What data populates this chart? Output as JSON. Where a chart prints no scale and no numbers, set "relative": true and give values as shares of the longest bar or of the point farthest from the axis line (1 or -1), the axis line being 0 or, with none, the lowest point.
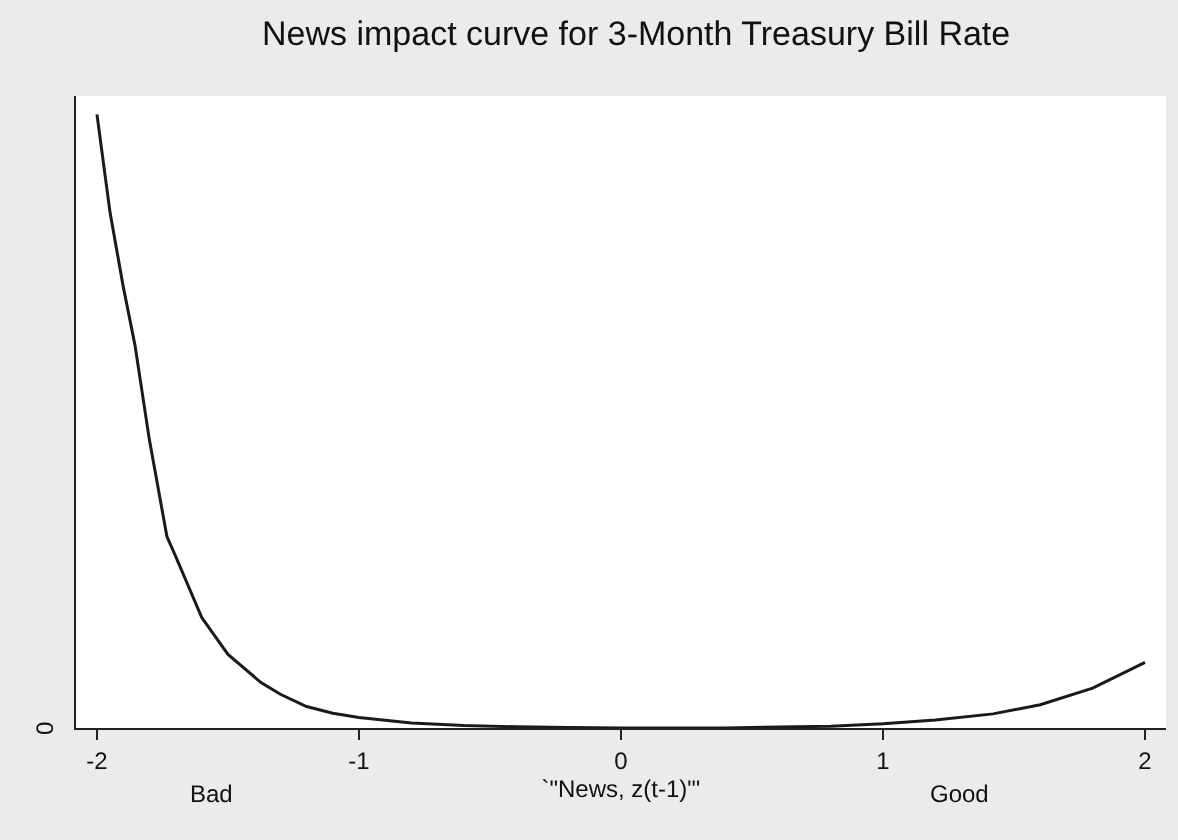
{
  "chart_data": {
    "type": "line",
    "title": "News impact curve for 3-Month Treasury Bill Rate",
    "xlabel": "`\"News, z(t-1)\"'",
    "relative": true,
    "color": "#1a1a1a",
    "marker": "none",
    "line_style": "solid",
    "legend": false,
    "grid": false,
    "x": [
      -2,
      -1.95,
      -1.9,
      -1.855,
      -1.8,
      -1.733,
      -1.7,
      -1.6,
      -1.5,
      -1.374,
      -1.3,
      -1.2,
      -1.1,
      -1,
      -0.8,
      -0.6,
      -0.4,
      -0.2,
      0,
      0.4,
      0.8,
      1,
      1.2,
      1.42,
      1.6,
      1.8,
      2
    ],
    "values": [
      1,
      0.84,
      0.72,
      0.624,
      0.47,
      0.312,
      0.28,
      0.18,
      0.12,
      0.074,
      0.055,
      0.035,
      0.024,
      0.017,
      0.008,
      0.004,
      0.002,
      0.001,
      0,
      0,
      0.003,
      0.007,
      0.013,
      0.023,
      0.038,
      0.065,
      0.107
    ],
    "xlim": [
      -2.08,
      2.08
    ],
    "xticks": [
      -2,
      -1,
      0,
      1,
      2
    ],
    "annotations": [
      "0",
      "Bad",
      "Good"
    ]
  }
}
